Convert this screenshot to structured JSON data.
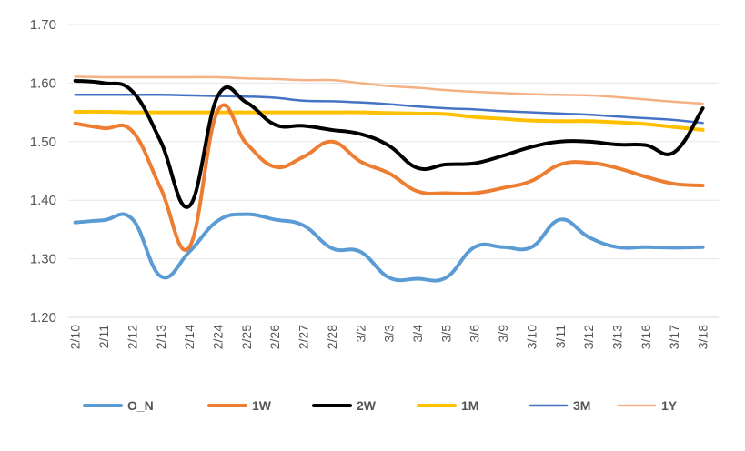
{
  "chart_data": {
    "type": "line",
    "title": "",
    "xlabel": "",
    "ylabel": "",
    "grid": true,
    "legend_position": "bottom",
    "ylim": [
      1.2,
      1.7
    ],
    "yticks": [
      "1.20",
      "1.30",
      "1.40",
      "1.50",
      "1.60",
      "1.70"
    ],
    "categories": [
      "2/10",
      "2/11",
      "2/12",
      "2/13",
      "2/14",
      "2/24",
      "2/25",
      "2/26",
      "2/27",
      "2/28",
      "3/2",
      "3/3",
      "3/4",
      "3/5",
      "3/6",
      "3/9",
      "3/10",
      "3/11",
      "3/12",
      "3/13",
      "3/16",
      "3/17",
      "3/18"
    ],
    "series": [
      {
        "name": "O_N",
        "color": "#5b9bd5",
        "width": 4,
        "values": [
          1.362,
          1.366,
          1.368,
          1.27,
          1.312,
          1.365,
          1.376,
          1.367,
          1.357,
          1.318,
          1.312,
          1.268,
          1.266,
          1.268,
          1.32,
          1.32,
          1.32,
          1.367,
          1.337,
          1.32,
          1.32,
          1.319,
          1.32
        ]
      },
      {
        "name": "1W",
        "color": "#ed7d31",
        "width": 4,
        "values": [
          1.531,
          1.523,
          1.518,
          1.42,
          1.32,
          1.553,
          1.497,
          1.457,
          1.474,
          1.5,
          1.466,
          1.446,
          1.415,
          1.412,
          1.412,
          1.421,
          1.433,
          1.461,
          1.464,
          1.455,
          1.44,
          1.428,
          1.425
        ]
      },
      {
        "name": "2W",
        "color": "#000000",
        "width": 4,
        "values": [
          1.604,
          1.6,
          1.586,
          1.5,
          1.39,
          1.578,
          1.567,
          1.529,
          1.527,
          1.52,
          1.513,
          1.493,
          1.455,
          1.461,
          1.463,
          1.476,
          1.491,
          1.5,
          1.5,
          1.495,
          1.494,
          1.482,
          1.557
        ]
      },
      {
        "name": "1M",
        "color": "#ffc000",
        "width": 4,
        "values": [
          1.551,
          1.551,
          1.55,
          1.55,
          1.55,
          1.55,
          1.55,
          1.55,
          1.55,
          1.55,
          1.55,
          1.549,
          1.548,
          1.547,
          1.542,
          1.539,
          1.536,
          1.535,
          1.535,
          1.533,
          1.53,
          1.525,
          1.52
        ]
      },
      {
        "name": "3M",
        "color": "#4472c4",
        "width": 2.5,
        "values": [
          1.58,
          1.58,
          1.58,
          1.58,
          1.579,
          1.578,
          1.577,
          1.575,
          1.57,
          1.569,
          1.567,
          1.564,
          1.56,
          1.557,
          1.555,
          1.552,
          1.55,
          1.548,
          1.546,
          1.543,
          1.54,
          1.537,
          1.532
        ]
      },
      {
        "name": "1Y",
        "color": "#f4b183",
        "width": 2.5,
        "values": [
          1.611,
          1.61,
          1.61,
          1.61,
          1.61,
          1.61,
          1.608,
          1.607,
          1.605,
          1.605,
          1.6,
          1.595,
          1.592,
          1.588,
          1.585,
          1.583,
          1.581,
          1.58,
          1.579,
          1.576,
          1.572,
          1.568,
          1.565
        ]
      }
    ]
  }
}
